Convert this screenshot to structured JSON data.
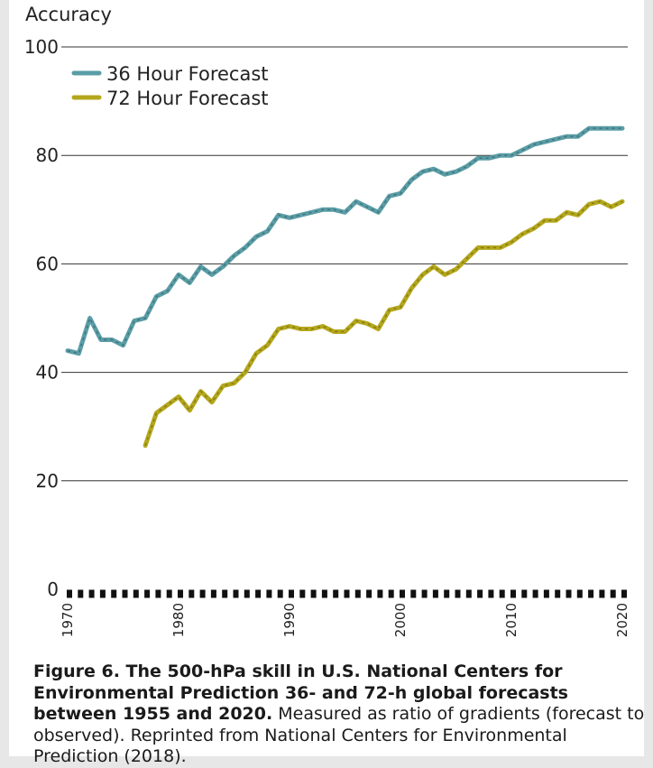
{
  "chart_data": {
    "type": "line",
    "ylabel": "Accuracy",
    "ylim": [
      0,
      100
    ],
    "yticks": [
      "100",
      "80",
      "60",
      "40",
      "20",
      "0"
    ],
    "xlim": [
      1970,
      2020
    ],
    "xticks": [
      "1970",
      "1980",
      "1990",
      "2000",
      "2010",
      "2020"
    ],
    "grid": true,
    "legend_position": "top-left",
    "series": [
      {
        "name": "36 Hour Forecast",
        "color": "#5a9da6",
        "x": [
          1970,
          1971,
          1972,
          1973,
          1974,
          1975,
          1976,
          1977,
          1978,
          1979,
          1980,
          1981,
          1982,
          1983,
          1984,
          1985,
          1986,
          1987,
          1988,
          1989,
          1990,
          1991,
          1992,
          1993,
          1994,
          1995,
          1996,
          1997,
          1998,
          1999,
          2000,
          2001,
          2002,
          2003,
          2004,
          2005,
          2006,
          2007,
          2008,
          2009,
          2010,
          2011,
          2012,
          2013,
          2014,
          2015,
          2016,
          2017,
          2018,
          2019,
          2020
        ],
        "values": [
          44,
          43.5,
          50,
          46,
          46,
          45,
          49.5,
          50,
          54,
          55,
          58,
          56.5,
          59.5,
          58,
          59.5,
          61.5,
          63,
          65,
          66,
          69,
          68.5,
          69,
          69.5,
          70,
          70,
          69.5,
          71.5,
          70.5,
          69.5,
          72.5,
          73,
          75.5,
          77,
          77.5,
          76.5,
          77,
          78,
          79.5,
          79.5,
          80,
          80,
          81,
          82,
          82.5,
          83,
          83.5,
          83.5,
          85,
          85,
          85,
          85
        ]
      },
      {
        "name": "72 Hour Forecast",
        "color": "#b4a71c",
        "x": [
          1977,
          1978,
          1979,
          1980,
          1981,
          1982,
          1983,
          1984,
          1985,
          1986,
          1987,
          1988,
          1989,
          1990,
          1991,
          1992,
          1993,
          1994,
          1995,
          1996,
          1997,
          1998,
          1999,
          2000,
          2001,
          2002,
          2003,
          2004,
          2005,
          2006,
          2007,
          2008,
          2009,
          2010,
          2011,
          2012,
          2013,
          2014,
          2015,
          2016,
          2017,
          2018,
          2019,
          2020
        ],
        "values": [
          26.5,
          32.5,
          34,
          35.5,
          33,
          36.5,
          34.5,
          37.5,
          38,
          40,
          43.5,
          45,
          48,
          48.5,
          48,
          48,
          48.5,
          47.5,
          47.5,
          49.5,
          49,
          48,
          51.5,
          52,
          55.5,
          58,
          59.5,
          58,
          59,
          61,
          63,
          63,
          63,
          64,
          65.5,
          66.5,
          68,
          68,
          69.5,
          69,
          71,
          71.5,
          70.5,
          71.5
        ]
      }
    ]
  },
  "caption": {
    "bold": "Figure 6. The 500-hPa skill in U.S. National Centers for Environmental Prediction 36- and 72-h global forecasts between 1955 and 2020.",
    "normal": "Measured as ratio of gradients (forecast to observed). Reprinted from National Centers for Environmental Prediction (2018)."
  }
}
